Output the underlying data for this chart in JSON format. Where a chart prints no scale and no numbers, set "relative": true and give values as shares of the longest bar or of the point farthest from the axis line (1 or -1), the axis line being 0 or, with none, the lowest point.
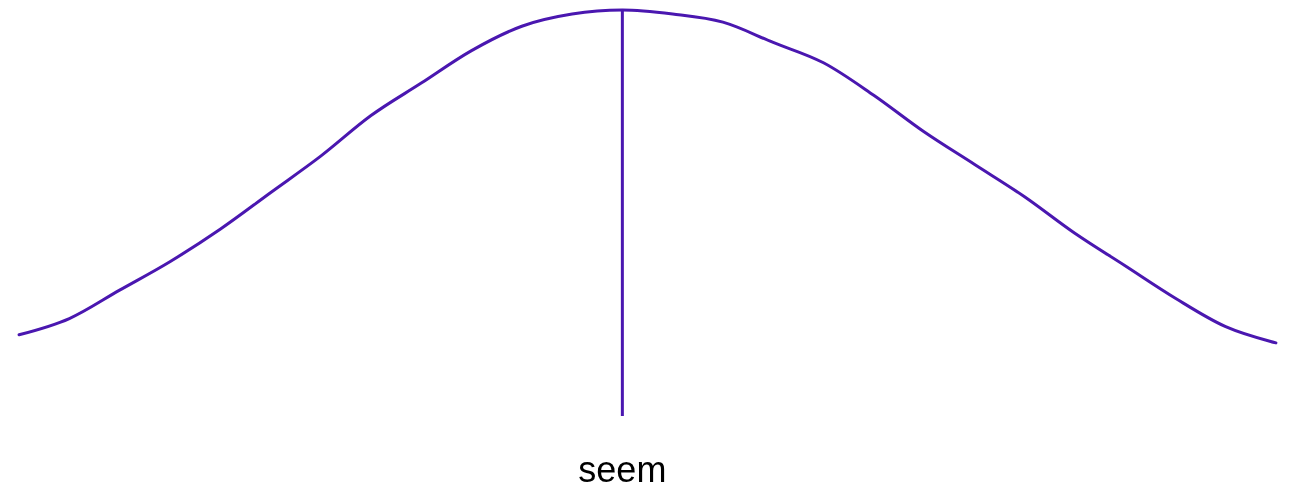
{
  "chart_data": {
    "type": "line",
    "relative": true,
    "categories": [
      null,
      null,
      null,
      null,
      null,
      null,
      null,
      null,
      null,
      null,
      null,
      null,
      null,
      null,
      null,
      null,
      null,
      null,
      null,
      null,
      null,
      null,
      null,
      null,
      null,
      null
    ],
    "series": [
      {
        "color": "#4a17b0",
        "values": [
          0.2,
          0.24,
          0.31,
          0.38,
          0.46,
          0.55,
          0.64,
          0.74,
          0.82,
          0.9,
          0.96,
          0.99,
          1,
          0.99,
          0.97,
          0.92,
          0.87,
          0.79,
          0.7,
          0.62,
          0.54,
          0.45,
          0.37,
          0.29,
          0.22,
          0.18
        ]
      }
    ],
    "annotations": [
      "seem"
    ]
  }
}
